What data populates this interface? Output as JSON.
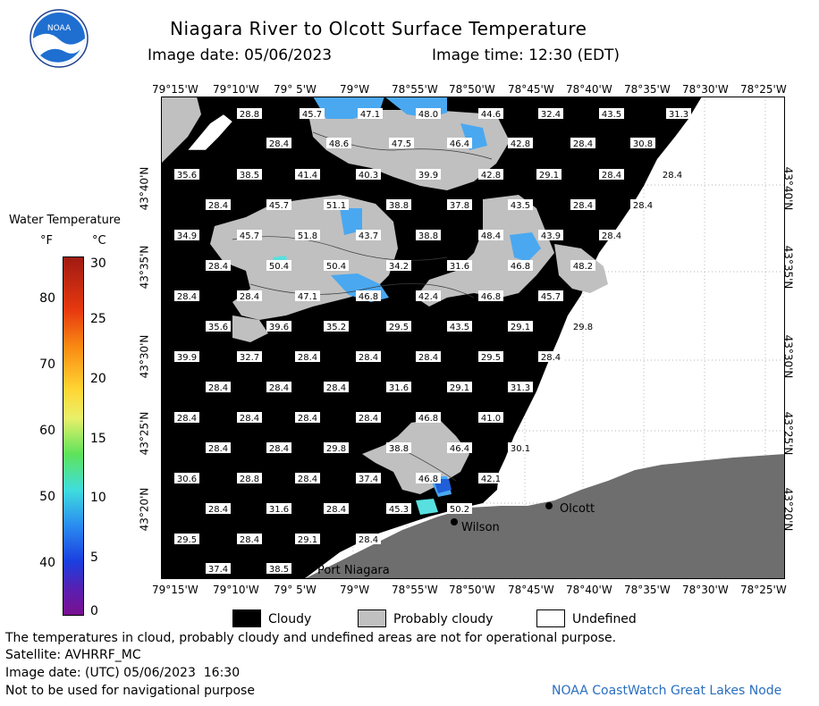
{
  "header": {
    "title": "Niagara River to Olcott Surface Temperature",
    "image_date_label": "Image date: 05/06/2023",
    "image_time_label": "Image time: 12:30 (EDT)"
  },
  "logo": {
    "text": "NOAA"
  },
  "axes": {
    "longitudes": [
      "79°15'W",
      "79°10'W",
      "79° 5'W",
      "79°W",
      "78°55'W",
      "78°50'W",
      "78°45'W",
      "78°40'W",
      "78°35'W",
      "78°30'W",
      "78°25'W"
    ],
    "latitudes": [
      "43°40'N",
      "43°35'N",
      "43°30'N",
      "43°25'N",
      "43°20'N"
    ]
  },
  "colorbar": {
    "title": "Water Temperature",
    "unit_f": "°F",
    "unit_c": "°C",
    "f_ticks": [
      "80",
      "70",
      "60",
      "50",
      "40"
    ],
    "c_ticks": [
      "30",
      "25",
      "20",
      "15",
      "10",
      "5",
      "0"
    ]
  },
  "places": {
    "olcott": "Olcott",
    "wilson": "Wilson",
    "port_niagara": "Port Niagara"
  },
  "temperature_labels": [
    [
      "28.8",
      "45.7",
      "47.1",
      "48.0",
      "44.6",
      "32.4",
      "43.5",
      "31.3"
    ],
    [
      "28.4",
      "48.6",
      "47.5",
      "46.4",
      "42.8",
      "28.4",
      "30.8"
    ],
    [
      "35.6",
      "38.5",
      "41.4",
      "40.3",
      "39.9",
      "42.8",
      "29.1",
      "28.4",
      "28.4"
    ],
    [
      "28.4",
      "45.7",
      "51.1",
      "38.8",
      "37.8",
      "43.5",
      "28.4",
      "28.4"
    ],
    [
      "34.9",
      "45.7",
      "51.8",
      "43.7",
      "38.8",
      "48.4",
      "43.9",
      "28.4"
    ],
    [
      "28.4",
      "50.4",
      "50.4",
      "34.2",
      "31.6",
      "46.8",
      "48.2"
    ],
    [
      "28.4",
      "28.4",
      "47.1",
      "46.8",
      "42.4",
      "46.8",
      "45.7"
    ],
    [
      "35.6",
      "39.6",
      "35.2",
      "29.5",
      "43.5",
      "29.1",
      "29.8"
    ],
    [
      "39.9",
      "32.7",
      "28.4",
      "28.4",
      "28.4",
      "29.5",
      "28.4"
    ],
    [
      "28.4",
      "28.4",
      "28.4",
      "31.6",
      "29.1",
      "31.3"
    ],
    [
      "28.4",
      "28.4",
      "28.4",
      "28.4",
      "46.8",
      "41.0"
    ],
    [
      "28.4",
      "28.4",
      "29.8",
      "38.8",
      "46.4",
      "30.1"
    ],
    [
      "30.6",
      "28.8",
      "28.4",
      "37.4",
      "46.8",
      "42.1"
    ],
    [
      "28.4",
      "31.6",
      "28.4",
      "45.3",
      "50.2"
    ],
    [
      "29.5",
      "28.4",
      "29.1",
      "28.4"
    ],
    [
      "37.4",
      "38.5"
    ]
  ],
  "legend": {
    "cloudy": "Cloudy",
    "probably_cloudy": "Probably cloudy",
    "undefined": "Undefined"
  },
  "colors": {
    "cloud": "#000000",
    "probably_cloudy": "#c0c0c0",
    "land": "#6e6e6e",
    "water_blue": "#4aa8f0",
    "undefined": "#ffffff"
  },
  "footer": {
    "disclaimer": "The temperatures in cloud, probably cloudy and undefined areas are not for operational purpose.",
    "satellite": "Satellite: AVHRRF_MC",
    "utc_date": "Image date: (UTC) 05/06/2023  16:30",
    "nav": "Not to be used for navigational purpose",
    "credit": "NOAA CoastWatch Great Lakes Node"
  }
}
